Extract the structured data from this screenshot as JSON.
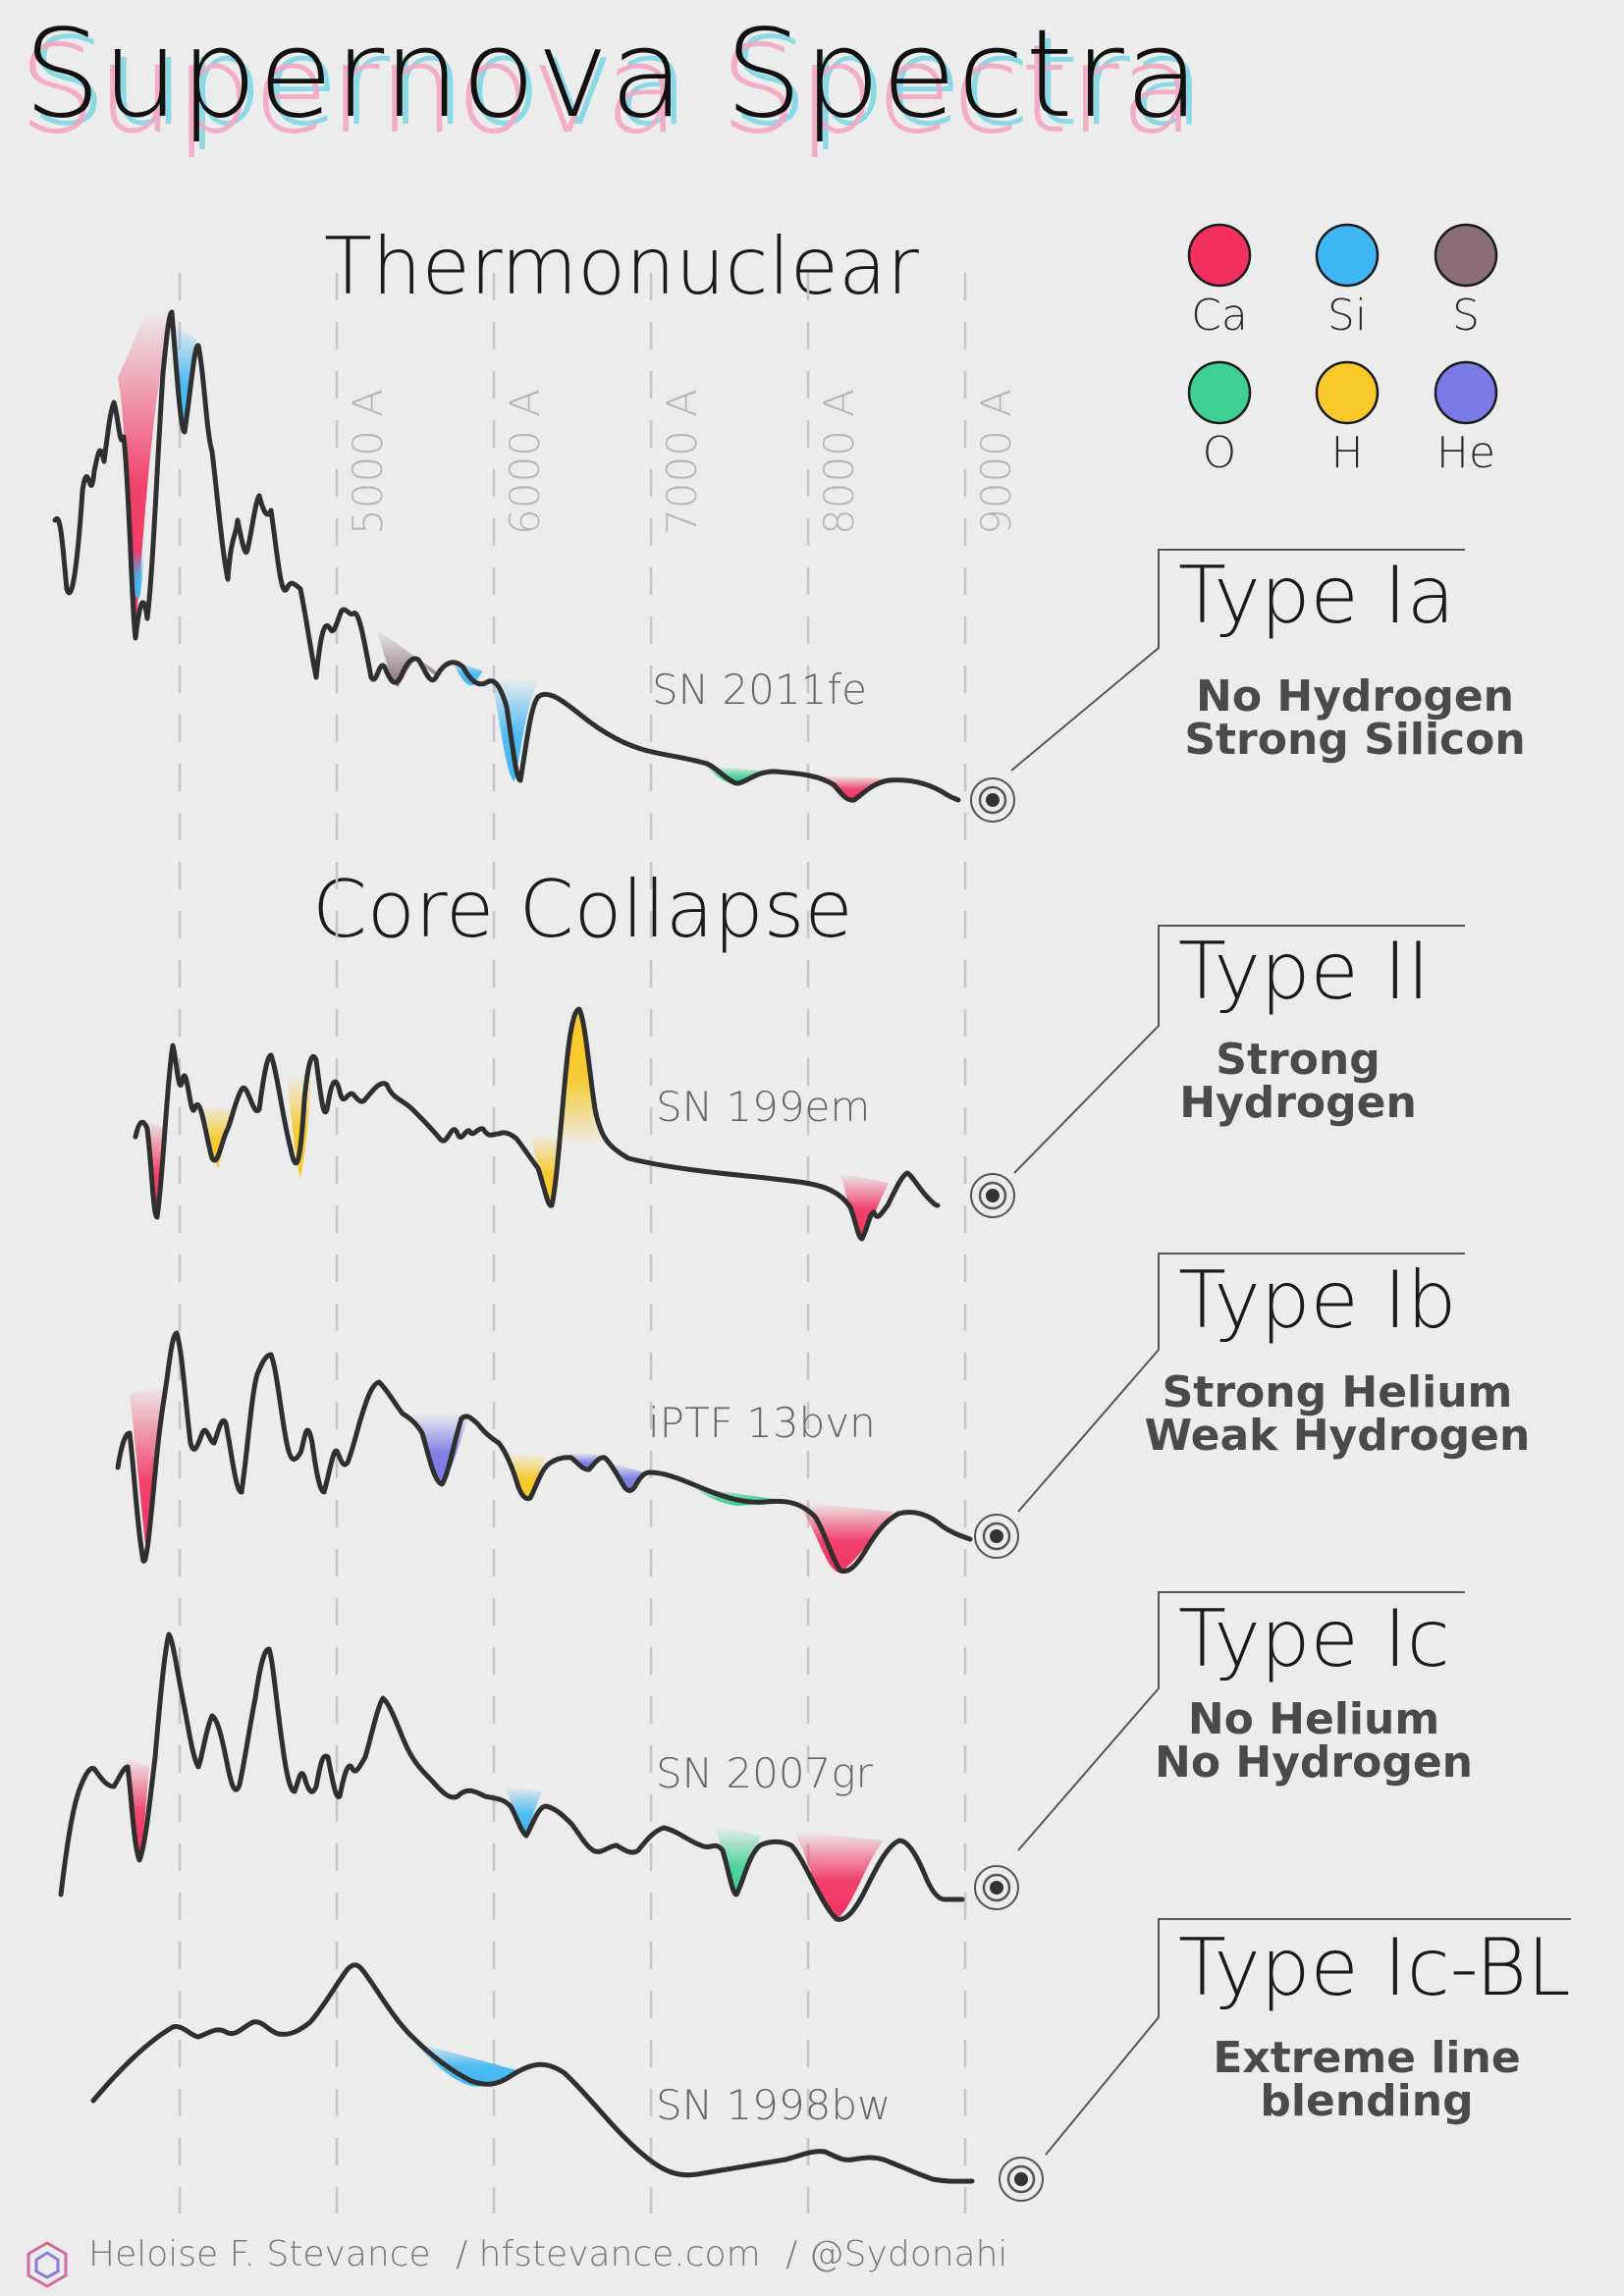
{
  "title": "Supernova Spectra",
  "sections": {
    "thermonuclear": "Thermonuclear",
    "core_collapse": "Core Collapse"
  },
  "wavelength_labels": [
    "5000 A",
    "6000 A",
    "7000 A",
    "8000 A",
    "9000 A"
  ],
  "legend": [
    {
      "element": "Ca",
      "color": "#f2315f"
    },
    {
      "element": "Si",
      "color": "#3fb6f4"
    },
    {
      "element": "S",
      "color": "#8a6d78"
    },
    {
      "element": "O",
      "color": "#3ecf93"
    },
    {
      "element": "H",
      "color": "#f8c928"
    },
    {
      "element": "He",
      "color": "#7a7be6"
    }
  ],
  "spectra": [
    {
      "type": "Type Ia",
      "desc": [
        "No Hydrogen",
        "Strong Silicon"
      ],
      "sn": "SN 2011fe"
    },
    {
      "type": "Type II",
      "desc": [
        "Strong",
        "Hydrogen"
      ],
      "sn": "SN 199em"
    },
    {
      "type": "Type Ib",
      "desc": [
        "Strong Helium",
        "Weak Hydrogen"
      ],
      "sn": "iPTF 13bvn"
    },
    {
      "type": "Type Ic",
      "desc": [
        "No Helium",
        "No Hydrogen"
      ],
      "sn": "SN 2007gr"
    },
    {
      "type": "Type Ic-BL",
      "desc": [
        "Extreme line",
        "blending"
      ],
      "sn": "SN 1998bw"
    }
  ],
  "footer": {
    "author": "Heloise F. Stevance",
    "site": "/ hfstevance.com",
    "handle": "/ @Sydonahi"
  }
}
